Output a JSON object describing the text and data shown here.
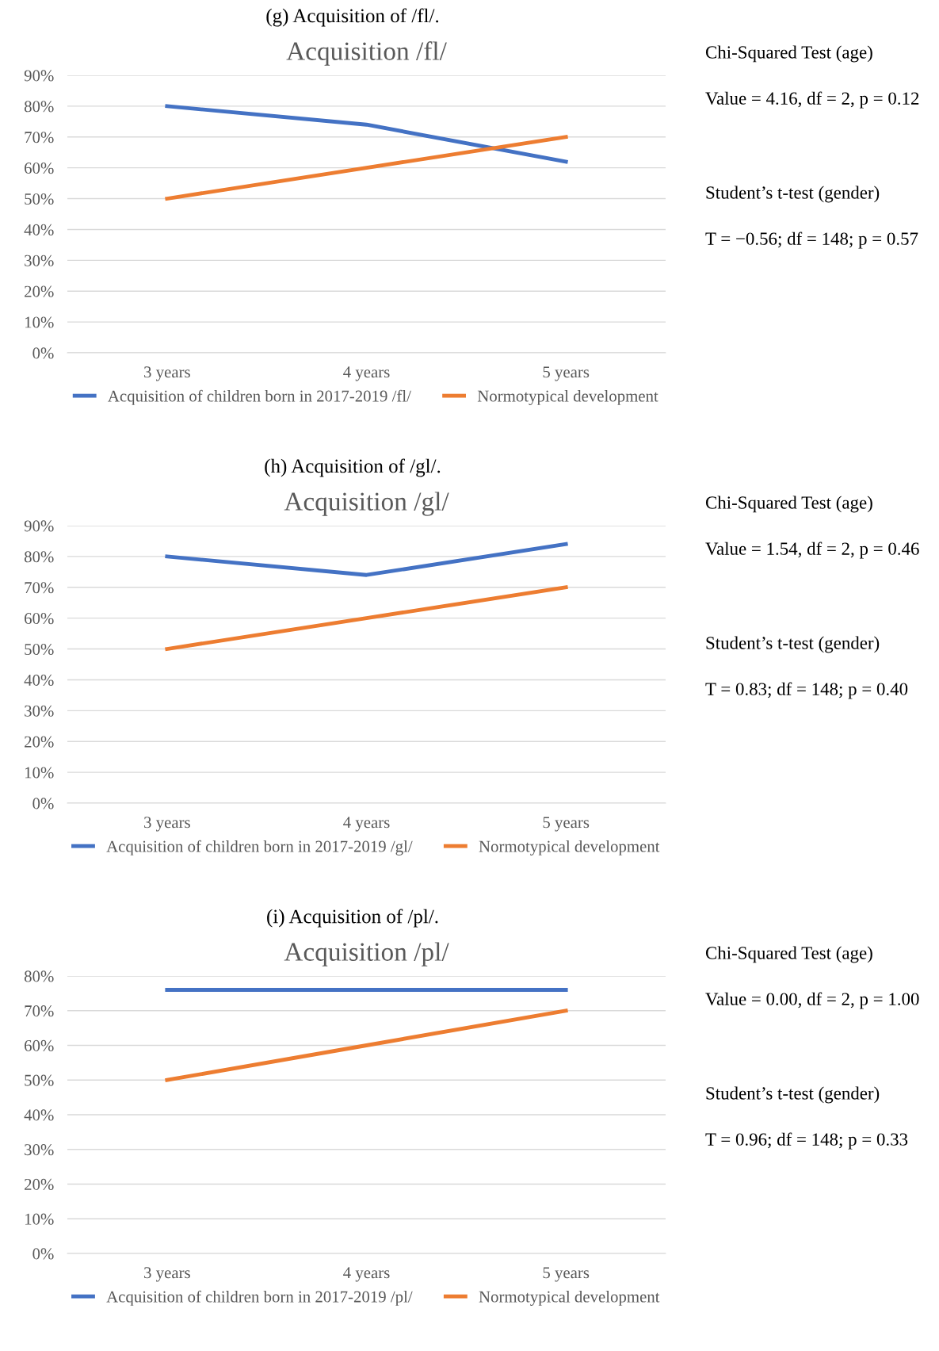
{
  "chart_data": [
    {
      "type": "line",
      "subtitle": "(g) Acquisition of /fl/.",
      "title": "Acquisition /fl/",
      "categories": [
        "3 years",
        "4 years",
        "5 years"
      ],
      "series": [
        {
          "name": "Acquisition of children born in 2017-2019 /fl/",
          "color": "#4472c4",
          "values": [
            80,
            74,
            62
          ]
        },
        {
          "name": "Normotypical development",
          "color": "#ed7d31",
          "values": [
            50,
            60,
            70
          ]
        }
      ],
      "ylim": [
        0,
        90
      ],
      "yticks": [
        {
          "value": 0,
          "label": "0%"
        },
        {
          "value": 10,
          "label": "10%"
        },
        {
          "value": 20,
          "label": "20%"
        },
        {
          "value": 30,
          "label": "30%"
        },
        {
          "value": 40,
          "label": "40%"
        },
        {
          "value": 50,
          "label": "50%"
        },
        {
          "value": 60,
          "label": "60%"
        },
        {
          "value": 70,
          "label": "70%"
        },
        {
          "value": 80,
          "label": "80%"
        },
        {
          "value": 90,
          "label": "90%"
        }
      ],
      "grid": "y",
      "legend": "bottom",
      "marker": "none",
      "line_style": "solid",
      "annotations": [
        "Chi-Squared Test (age)",
        "Value = 4.16, df = 2, p = 0.12",
        "Student’s t-test (gender)",
        "T = −0.56; df = 148; p = 0.57"
      ]
    },
    {
      "type": "line",
      "subtitle": "(h) Acquisition of /gl/.",
      "title": "Acquisition /gl/",
      "categories": [
        "3 years",
        "4 years",
        "5 years"
      ],
      "series": [
        {
          "name": "Acquisition of children born in 2017-2019 /gl/",
          "color": "#4472c4",
          "values": [
            80,
            74,
            84
          ]
        },
        {
          "name": "Normotypical development",
          "color": "#ed7d31",
          "values": [
            50,
            60,
            70
          ]
        }
      ],
      "ylim": [
        0,
        90
      ],
      "yticks": [
        {
          "value": 0,
          "label": "0%"
        },
        {
          "value": 10,
          "label": "10%"
        },
        {
          "value": 20,
          "label": "20%"
        },
        {
          "value": 30,
          "label": "30%"
        },
        {
          "value": 40,
          "label": "40%"
        },
        {
          "value": 50,
          "label": "50%"
        },
        {
          "value": 60,
          "label": "60%"
        },
        {
          "value": 70,
          "label": "70%"
        },
        {
          "value": 80,
          "label": "80%"
        },
        {
          "value": 90,
          "label": "90%"
        }
      ],
      "grid": "y",
      "legend": "bottom",
      "marker": "none",
      "line_style": "solid",
      "annotations": [
        "Chi-Squared Test (age)",
        "Value = 1.54, df = 2, p = 0.46",
        "Student’s t-test (gender)",
        "T = 0.83; df = 148; p = 0.40"
      ]
    },
    {
      "type": "line",
      "subtitle": "(i) Acquisition of /pl/.",
      "title": "Acquisition /pl/",
      "categories": [
        "3 years",
        "4 years",
        "5 years"
      ],
      "series": [
        {
          "name": "Acquisition of children born in 2017-2019 /pl/",
          "color": "#4472c4",
          "values": [
            76,
            76,
            76
          ]
        },
        {
          "name": "Normotypical development",
          "color": "#ed7d31",
          "values": [
            50,
            60,
            70
          ]
        }
      ],
      "ylim": [
        0,
        80
      ],
      "yticks": [
        {
          "value": 0,
          "label": "0%"
        },
        {
          "value": 10,
          "label": "10%"
        },
        {
          "value": 20,
          "label": "20%"
        },
        {
          "value": 30,
          "label": "30%"
        },
        {
          "value": 40,
          "label": "40%"
        },
        {
          "value": 50,
          "label": "50%"
        },
        {
          "value": 60,
          "label": "60%"
        },
        {
          "value": 70,
          "label": "70%"
        },
        {
          "value": 80,
          "label": "80%"
        }
      ],
      "grid": "y",
      "legend": "bottom",
      "marker": "none",
      "line_style": "solid",
      "annotations": [
        "Chi-Squared Test (age)",
        "Value = 0.00, df = 2, p = 1.00",
        "Student’s t-test (gender)",
        "T = 0.96; df = 148; p = 0.33"
      ]
    }
  ]
}
